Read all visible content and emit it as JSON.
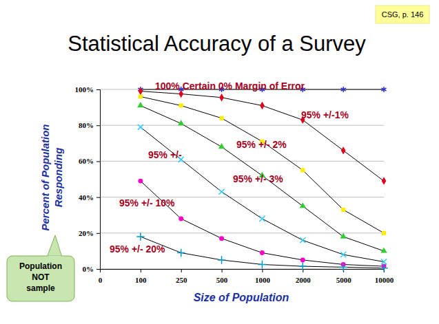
{
  "chart_data": {
    "type": "line",
    "title": "Statistical Accuracy of a Survey",
    "x_label": "Size of Population",
    "y_label": "Percent of Population Responding",
    "categories": [
      "0",
      "100",
      "250",
      "500",
      "1000",
      "2000",
      "5000",
      "10000"
    ],
    "series": [
      {
        "name": "100% Certain 0% Margin of Error",
        "color": "#3333cc",
        "marker": "asterisk",
        "values": [
          null,
          100,
          100,
          100,
          100,
          100,
          100,
          100
        ]
      },
      {
        "name": "95% +/-1%",
        "color": "#e0001b",
        "marker": "diamond",
        "values": [
          null,
          99,
          97.5,
          95.5,
          91,
          83,
          66,
          49
        ]
      },
      {
        "name": "95% +/- 2%",
        "color": "#ffee00",
        "marker": "square",
        "values": [
          null,
          96,
          91,
          84,
          71,
          55,
          33,
          20
        ]
      },
      {
        "name": "95% +/- 3%",
        "color": "#33cc33",
        "marker": "triangle",
        "values": [
          null,
          91,
          81,
          68,
          52,
          35,
          18,
          10
        ]
      },
      {
        "name": "95% +/-",
        "color": "#33ccff",
        "marker": "x",
        "values": [
          null,
          79,
          61,
          43,
          28,
          16,
          8,
          4
        ]
      },
      {
        "name": "95% +/- 10%",
        "color": "#ff00cc",
        "marker": "circle",
        "values": [
          null,
          49,
          28,
          17,
          9,
          5,
          2.5,
          1.5
        ]
      },
      {
        "name": "95% +/- 20%",
        "color": "#0099cc",
        "marker": "plus",
        "values": [
          null,
          18,
          9,
          5,
          2.5,
          1.5,
          1,
          0.5
        ]
      }
    ],
    "ylim": [
      0,
      100
    ],
    "yticks": [
      {
        "value": 0,
        "label": "0%"
      },
      {
        "value": 20,
        "label": "20%"
      },
      {
        "value": 40,
        "label": "40%"
      },
      {
        "value": 60,
        "label": "60%"
      },
      {
        "value": 80,
        "label": "80%"
      },
      {
        "value": 100,
        "label": "100%"
      }
    ],
    "grid": true,
    "annotations": [
      "CSG, p. 146",
      "Population NOT sample"
    ]
  }
}
